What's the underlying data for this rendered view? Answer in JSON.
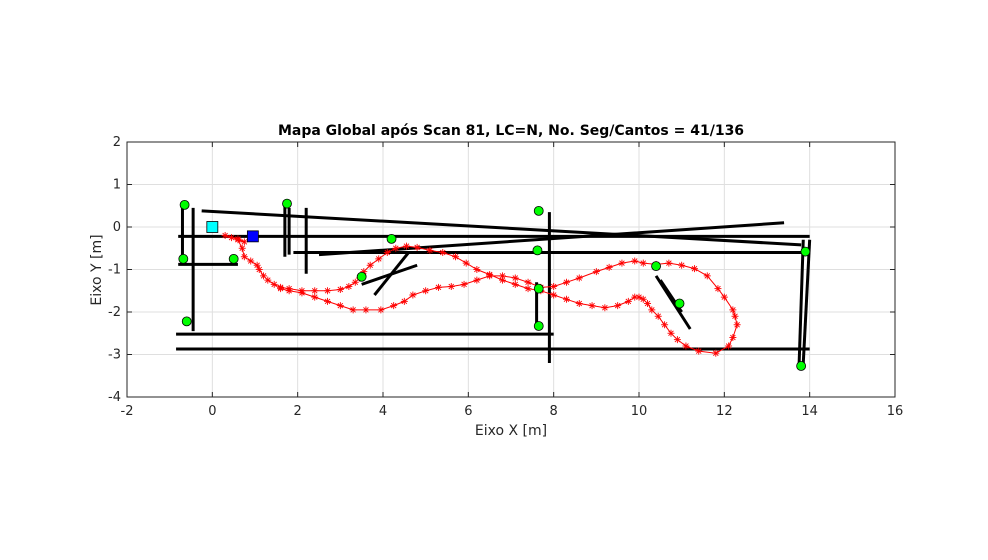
{
  "chart_data": {
    "type": "line",
    "title": "Mapa Global após Scan 81, LC=N, No. Seg/Cantos = 41/136",
    "xlabel": "Eixo X [m]",
    "ylabel": "Eixo Y [m]",
    "xlim": [
      -2,
      16
    ],
    "ylim": [
      -4,
      2
    ],
    "xticks": [
      -2,
      0,
      2,
      4,
      6,
      8,
      10,
      12,
      14,
      16
    ],
    "yticks": [
      -4,
      -3,
      -2,
      -1,
      0,
      1,
      2
    ],
    "grid": true,
    "colors": {
      "trajectory": "#ff0000",
      "segments": "#000000",
      "corners": "#00ff00",
      "start_marker": "#00ffff",
      "current_marker": "#0000ff"
    },
    "series": [
      {
        "kind": "trajectory",
        "marker": "asterisk",
        "points": [
          [
            0.3,
            -0.2
          ],
          [
            0.45,
            -0.25
          ],
          [
            0.6,
            -0.28
          ],
          [
            0.75,
            -0.35
          ],
          [
            0.6,
            -0.3
          ],
          [
            0.7,
            -0.5
          ],
          [
            0.75,
            -0.7
          ],
          [
            0.9,
            -0.8
          ],
          [
            1.05,
            -0.9
          ],
          [
            1.1,
            -1.0
          ],
          [
            1.2,
            -1.15
          ],
          [
            1.3,
            -1.25
          ],
          [
            1.45,
            -1.35
          ],
          [
            1.6,
            -1.42
          ],
          [
            1.8,
            -1.45
          ],
          [
            2.1,
            -1.5
          ],
          [
            2.4,
            -1.5
          ],
          [
            2.7,
            -1.5
          ],
          [
            3.0,
            -1.47
          ],
          [
            3.2,
            -1.4
          ],
          [
            3.35,
            -1.3
          ],
          [
            3.45,
            -1.2
          ],
          [
            3.55,
            -1.05
          ],
          [
            3.7,
            -0.9
          ],
          [
            3.9,
            -0.75
          ],
          [
            4.1,
            -0.6
          ],
          [
            4.3,
            -0.5
          ],
          [
            4.55,
            -0.45
          ],
          [
            4.8,
            -0.48
          ],
          [
            5.1,
            -0.55
          ],
          [
            5.4,
            -0.6
          ],
          [
            5.7,
            -0.7
          ],
          [
            5.95,
            -0.85
          ],
          [
            6.2,
            -1.0
          ],
          [
            6.5,
            -1.12
          ],
          [
            6.8,
            -1.25
          ],
          [
            7.1,
            -1.35
          ],
          [
            7.4,
            -1.45
          ],
          [
            7.7,
            -1.5
          ],
          [
            8.0,
            -1.6
          ],
          [
            8.3,
            -1.7
          ],
          [
            8.6,
            -1.8
          ],
          [
            8.9,
            -1.85
          ],
          [
            9.2,
            -1.9
          ],
          [
            9.5,
            -1.85
          ],
          [
            9.75,
            -1.75
          ],
          [
            9.9,
            -1.65
          ],
          [
            10.0,
            -1.65
          ],
          [
            10.1,
            -1.7
          ],
          [
            10.2,
            -1.8
          ],
          [
            10.3,
            -1.95
          ],
          [
            10.45,
            -2.1
          ],
          [
            10.6,
            -2.3
          ],
          [
            10.75,
            -2.5
          ],
          [
            10.9,
            -2.65
          ],
          [
            11.1,
            -2.8
          ],
          [
            11.4,
            -2.92
          ],
          [
            11.8,
            -2.97
          ],
          [
            12.1,
            -2.8
          ],
          [
            12.2,
            -2.6
          ],
          [
            12.3,
            -2.3
          ],
          [
            12.25,
            -2.1
          ],
          [
            12.2,
            -1.95
          ],
          [
            12.0,
            -1.65
          ],
          [
            11.85,
            -1.45
          ],
          [
            11.6,
            -1.15
          ],
          [
            11.3,
            -0.98
          ],
          [
            11.0,
            -0.9
          ],
          [
            10.7,
            -0.85
          ],
          [
            10.4,
            -0.88
          ],
          [
            10.1,
            -0.85
          ],
          [
            9.9,
            -0.8
          ],
          [
            9.6,
            -0.85
          ],
          [
            9.3,
            -0.95
          ],
          [
            9.0,
            -1.05
          ],
          [
            8.6,
            -1.2
          ],
          [
            8.3,
            -1.3
          ],
          [
            8.0,
            -1.4
          ],
          [
            7.7,
            -1.42
          ],
          [
            7.4,
            -1.3
          ],
          [
            7.1,
            -1.2
          ],
          [
            6.8,
            -1.15
          ],
          [
            6.5,
            -1.15
          ],
          [
            6.2,
            -1.25
          ],
          [
            5.9,
            -1.35
          ],
          [
            5.6,
            -1.4
          ],
          [
            5.3,
            -1.42
          ],
          [
            5.0,
            -1.5
          ],
          [
            4.7,
            -1.6
          ],
          [
            4.5,
            -1.75
          ],
          [
            4.25,
            -1.85
          ],
          [
            3.95,
            -1.95
          ],
          [
            3.6,
            -1.95
          ],
          [
            3.3,
            -1.95
          ],
          [
            3.0,
            -1.85
          ],
          [
            2.7,
            -1.75
          ],
          [
            2.4,
            -1.65
          ],
          [
            2.1,
            -1.55
          ],
          [
            1.8,
            -1.5
          ],
          [
            1.6,
            -1.45
          ]
        ]
      },
      {
        "kind": "segments",
        "lines": [
          [
            [
              -0.8,
              -0.22
            ],
            [
              14,
              -0.22
            ]
          ],
          [
            [
              -0.8,
              -0.88
            ],
            [
              0.6,
              -0.88
            ]
          ],
          [
            [
              -0.85,
              -2.52
            ],
            [
              8.0,
              -2.52
            ]
          ],
          [
            [
              -0.85,
              -2.87
            ],
            [
              14.0,
              -2.87
            ]
          ],
          [
            [
              1.9,
              -0.6
            ],
            [
              13.9,
              -0.6
            ]
          ],
          [
            [
              -0.25,
              0.38
            ],
            [
              13.8,
              -0.42
            ]
          ],
          [
            [
              2.5,
              -0.65
            ],
            [
              13.4,
              0.1
            ]
          ],
          [
            [
              -0.7,
              0.5
            ],
            [
              -0.7,
              -0.75
            ]
          ],
          [
            [
              -0.45,
              0.45
            ],
            [
              -0.45,
              -2.45
            ]
          ],
          [
            [
              1.7,
              0.55
            ],
            [
              1.7,
              -0.7
            ]
          ],
          [
            [
              1.8,
              0.45
            ],
            [
              1.8,
              -0.65
            ]
          ],
          [
            [
              2.2,
              0.45
            ],
            [
              2.2,
              -1.1
            ]
          ],
          [
            [
              7.6,
              -1.3
            ],
            [
              7.6,
              -2.3
            ]
          ],
          [
            [
              7.9,
              0.35
            ],
            [
              7.9,
              -3.2
            ]
          ],
          [
            [
              13.85,
              -0.3
            ],
            [
              13.75,
              -3.3
            ]
          ],
          [
            [
              14.0,
              -0.3
            ],
            [
              13.85,
              -3.2
            ]
          ],
          [
            [
              4.8,
              -0.9
            ],
            [
              3.5,
              -1.35
            ]
          ],
          [
            [
              4.6,
              -0.6
            ],
            [
              3.8,
              -1.6
            ]
          ],
          [
            [
              10.4,
              -1.15
            ],
            [
              11.2,
              -2.4
            ]
          ],
          [
            [
              10.5,
              -1.25
            ],
            [
              11.0,
              -2.0
            ]
          ]
        ]
      },
      {
        "kind": "corners",
        "marker": "circle",
        "points": [
          [
            -0.65,
            0.52
          ],
          [
            -0.68,
            -0.75
          ],
          [
            -0.6,
            -2.22
          ],
          [
            0.5,
            -0.75
          ],
          [
            1.75,
            0.55
          ],
          [
            3.5,
            -1.17
          ],
          [
            4.2,
            -0.28
          ],
          [
            7.65,
            0.38
          ],
          [
            7.62,
            -0.55
          ],
          [
            7.65,
            -1.45
          ],
          [
            7.65,
            -2.33
          ],
          [
            10.4,
            -0.92
          ],
          [
            10.95,
            -1.8
          ],
          [
            13.9,
            -0.58
          ],
          [
            13.8,
            -3.27
          ]
        ]
      },
      {
        "kind": "start",
        "marker": "square",
        "points": [
          [
            0.0,
            0.0
          ]
        ]
      },
      {
        "kind": "current",
        "marker": "square",
        "points": [
          [
            0.95,
            -0.22
          ]
        ]
      }
    ]
  }
}
